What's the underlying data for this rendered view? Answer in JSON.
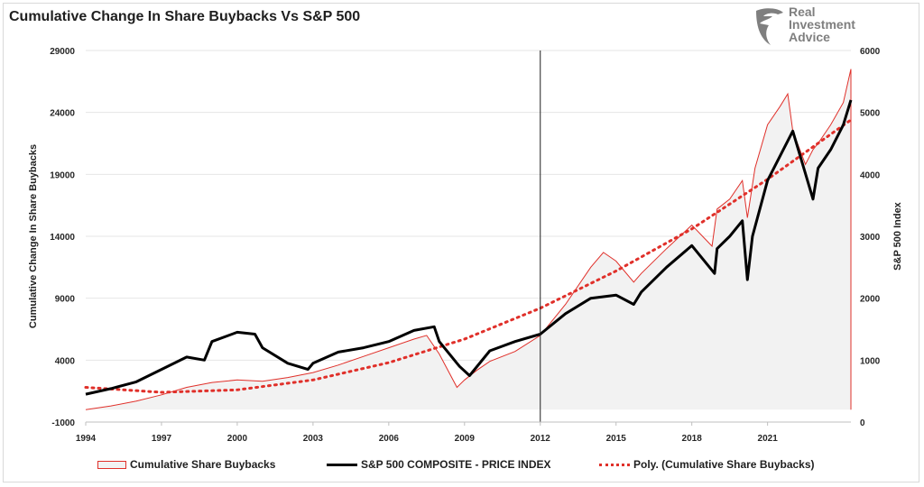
{
  "header": {
    "title": "Cumulative Change In Share Buybacks Vs S&P 500",
    "logo_lines": [
      "Real",
      "Investment",
      "Advice"
    ]
  },
  "colors": {
    "buybacks": "#e0302a",
    "buybacks_fill": "#f2f2f2",
    "spx": "#000000",
    "poly": "#e0302a",
    "grid": "#e6e6e6"
  },
  "chart_data": {
    "type": "line",
    "title": "Cumulative Change In Share Buybacks Vs S&P 500",
    "ylabel_left": "Cumulative Change In Share Buybacks",
    "ylabel_right": "S&P 500 Index",
    "x_ticks": [
      "1994",
      "1997",
      "2000",
      "2003",
      "2006",
      "2009",
      "2012",
      "2015",
      "2018",
      "2021"
    ],
    "y_left_ticks": [
      "29000",
      "24000",
      "19000",
      "14000",
      "9000",
      "4000",
      "-1000"
    ],
    "y_right_ticks": [
      "6000",
      "5000",
      "4000",
      "3000",
      "2000",
      "1000",
      "0"
    ],
    "xlim": [
      1994,
      2024.3
    ],
    "ylim_left": [
      -1000,
      29000
    ],
    "ylim_right": [
      0,
      6000
    ],
    "grid": true,
    "legend_position": "bottom",
    "vertical_marker_x": 2012,
    "series": [
      {
        "name": "Cumulative Share Buybacks",
        "axis": "left",
        "style": "area",
        "x": [
          1994,
          1995,
          1996,
          1997,
          1998,
          1999,
          2000,
          2001,
          2002,
          2003,
          2004,
          2005,
          2006,
          2007,
          2007.5,
          2008,
          2008.7,
          2009,
          2009.5,
          2010,
          2011,
          2012,
          2013,
          2014,
          2014.5,
          2015,
          2015.7,
          2016,
          2017,
          2018,
          2018.8,
          2019,
          2019.5,
          2020,
          2020.2,
          2020.5,
          2021,
          2021.5,
          2021.8,
          2022,
          2022.5,
          2022.8,
          2023,
          2023.5,
          2024,
          2024.3
        ],
        "y": [
          0,
          300,
          700,
          1200,
          1800,
          2200,
          2400,
          2300,
          2600,
          3000,
          3600,
          4300,
          5000,
          5700,
          6000,
          4500,
          1800,
          2400,
          3200,
          3900,
          4700,
          6000,
          8500,
          11500,
          12700,
          12000,
          10300,
          11000,
          13000,
          14900,
          13200,
          16200,
          17000,
          18500,
          15500,
          19500,
          23000,
          24500,
          25500,
          22500,
          19800,
          21000,
          21500,
          23000,
          24800,
          27500
        ]
      },
      {
        "name": "S&P 500 COMPOSITE - PRICE INDEX",
        "axis": "right",
        "style": "line",
        "x": [
          1994,
          1995,
          1996,
          1997,
          1998,
          1998.7,
          1999,
          2000,
          2000.7,
          2001,
          2002,
          2002.8,
          2003,
          2004,
          2005,
          2006,
          2007,
          2007.8,
          2008,
          2008.8,
          2009.2,
          2010,
          2011,
          2012,
          2013,
          2014,
          2015,
          2015.7,
          2016,
          2017,
          2018,
          2018.9,
          2019,
          2019.5,
          2020,
          2020.2,
          2020.4,
          2021,
          2022,
          2022.8,
          2023,
          2023.5,
          2024,
          2024.3
        ],
        "y": [
          450,
          540,
          650,
          850,
          1050,
          1000,
          1300,
          1450,
          1420,
          1200,
          950,
          850,
          950,
          1130,
          1200,
          1300,
          1480,
          1540,
          1300,
          900,
          750,
          1150,
          1300,
          1420,
          1750,
          2000,
          2050,
          1900,
          2100,
          2500,
          2850,
          2400,
          2800,
          3000,
          3250,
          2300,
          3000,
          3900,
          4700,
          3600,
          4100,
          4400,
          4800,
          5200
        ]
      },
      {
        "name": "Poly. (Cumulative Share Buybacks)",
        "axis": "left",
        "style": "dotted",
        "x": [
          1994,
          1997,
          2000,
          2003,
          2006,
          2009,
          2012,
          2015,
          2018,
          2021,
          2024.3
        ],
        "y": [
          1800,
          1400,
          1600,
          2400,
          3800,
          5700,
          8200,
          11200,
          14600,
          18600,
          23400
        ]
      }
    ]
  },
  "legend": {
    "buybacks_label": "Cumulative Share Buybacks",
    "spx_label": "S&P 500 COMPOSITE - PRICE INDEX",
    "poly_label": "Poly. (Cumulative Share Buybacks)"
  }
}
